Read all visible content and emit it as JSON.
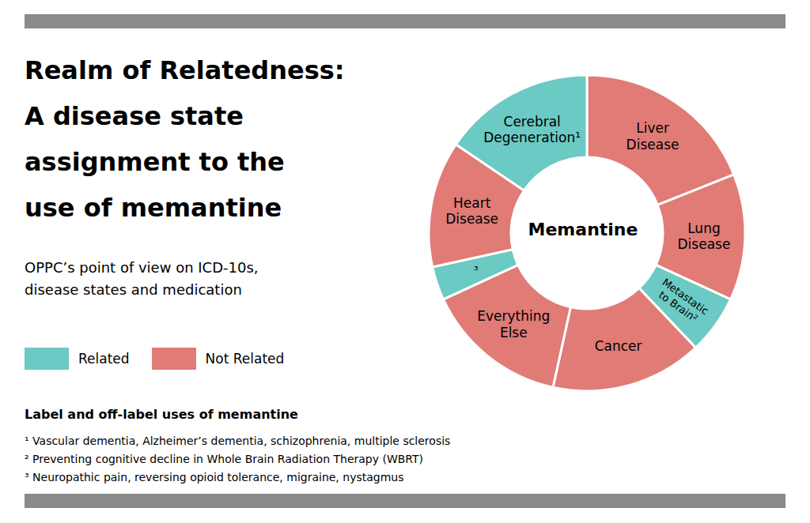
{
  "chart_data": {
    "type": "pie",
    "title": "Realm of Relatedness:\nA disease state\nassignment to the\nuse of memantine",
    "subtitle": "OPPC’s point of view on ICD-10s,\ndisease states and medication",
    "categories": [
      "Liver\nDisease",
      "Lung\nDisease",
      "Metastatic\nto Brain²",
      "Cancer",
      "Everything\nElse",
      "³",
      "Heart\nDisease",
      "Cerebral\nDegeneration¹"
    ],
    "series": [
      {
        "name": "Related",
        "color": "#6BCAC3",
        "values": [
          null,
          null,
          7,
          null,
          null,
          4,
          null,
          18
        ]
      },
      {
        "name": "Not Related",
        "color": "#E07B76",
        "values": [
          22,
          15,
          null,
          18,
          17,
          null,
          15,
          null
        ]
      }
    ],
    "legend": "left",
    "annotations": [
      "Memantine",
      "Label and off-label uses of memantine",
      "¹ Vascular dementia, Alzheimer’s dementia, schizophrenia, multiple sclerosis",
      "² Preventing cognitive decline in Whole Brain Radiation Therapy (WBRT)",
      "³ Neuropathic pain, reversing opioid tolerance, migraine, nystagmus"
    ]
  }
}
